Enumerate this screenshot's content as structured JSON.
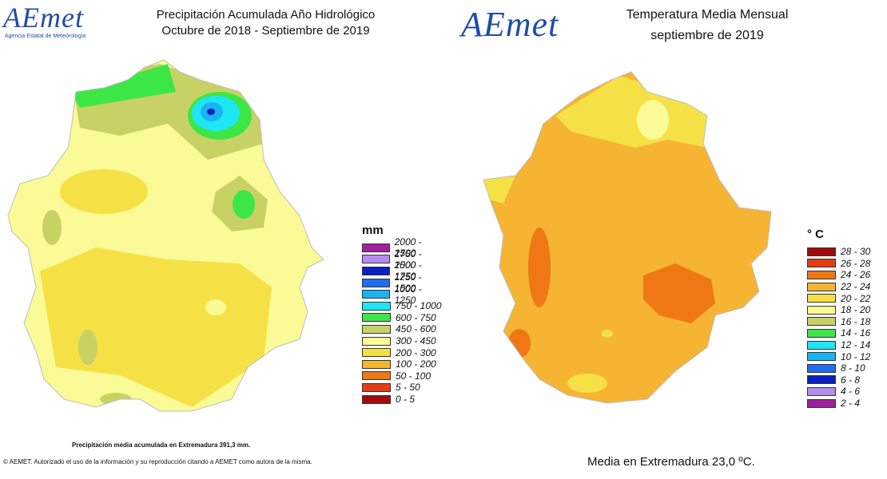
{
  "precip_panel": {
    "logo_text": "AEmet",
    "logo_subtitle": "Agencia Estatal de Meteorología",
    "title_line1": "Precipitación Acumulada Año Hidrológico",
    "title_line2": "Octubre de 2018 - Septiembre de 2019",
    "legend_unit": "mm",
    "legend": [
      {
        "label": "2000 - 2500",
        "color": "#a020a0"
      },
      {
        "label": "1750 - 2000",
        "color": "#b48cf0"
      },
      {
        "label": "1500 - 1750",
        "color": "#0a1ec8"
      },
      {
        "label": "1250 - 1500",
        "color": "#1e6ef0"
      },
      {
        "label": "1000 - 1250",
        "color": "#19b4f0"
      },
      {
        "label": "750 - 1000",
        "color": "#1ee6f5"
      },
      {
        "label": "600 - 750",
        "color": "#3ce646"
      },
      {
        "label": "450 - 600",
        "color": "#c8d264"
      },
      {
        "label": "300 - 450",
        "color": "#fafa96"
      },
      {
        "label": "200 - 300",
        "color": "#f5e146"
      },
      {
        "label": "100 - 200",
        "color": "#f5b432"
      },
      {
        "label": "50 - 100",
        "color": "#f07814"
      },
      {
        "label": "5 - 50",
        "color": "#e63c14"
      },
      {
        "label": "0 - 5",
        "color": "#a50a0a"
      }
    ],
    "footnote_mean": "Precipitación media acumulada en Extremadura 391,3 mm.",
    "footnote_copyright": "© AEMET. Autorizado el uso de la información y su reproducción citando a AEMET como autora de la misma."
  },
  "temp_panel": {
    "logo_text": "AEmet",
    "title_line1": "Temperatura Media Mensual",
    "title_line2": "septiembre de 2019",
    "legend_unit": "° C",
    "legend": [
      {
        "label": "28 - 30",
        "color": "#a50a0a"
      },
      {
        "label": "26 - 28",
        "color": "#e63c14"
      },
      {
        "label": "24 - 26",
        "color": "#f07814"
      },
      {
        "label": "22 - 24",
        "color": "#f5b432"
      },
      {
        "label": "20 - 22",
        "color": "#f5e146"
      },
      {
        "label": "18 - 20",
        "color": "#fafa96"
      },
      {
        "label": "16 - 18",
        "color": "#c8d264"
      },
      {
        "label": "14 - 16",
        "color": "#3ce646"
      },
      {
        "label": "12 - 14",
        "color": "#1ee6f5"
      },
      {
        "label": "10 - 12",
        "color": "#19b4f0"
      },
      {
        "label": "8 - 10",
        "color": "#1e6ef0"
      },
      {
        "label": "6 - 8",
        "color": "#0a1ec8"
      },
      {
        "label": "4 - 6",
        "color": "#b48cf0"
      },
      {
        "label": "2 - 4",
        "color": "#a020a0"
      }
    ],
    "footnote_mean": "Media en Extremadura 23,0 ºC."
  }
}
